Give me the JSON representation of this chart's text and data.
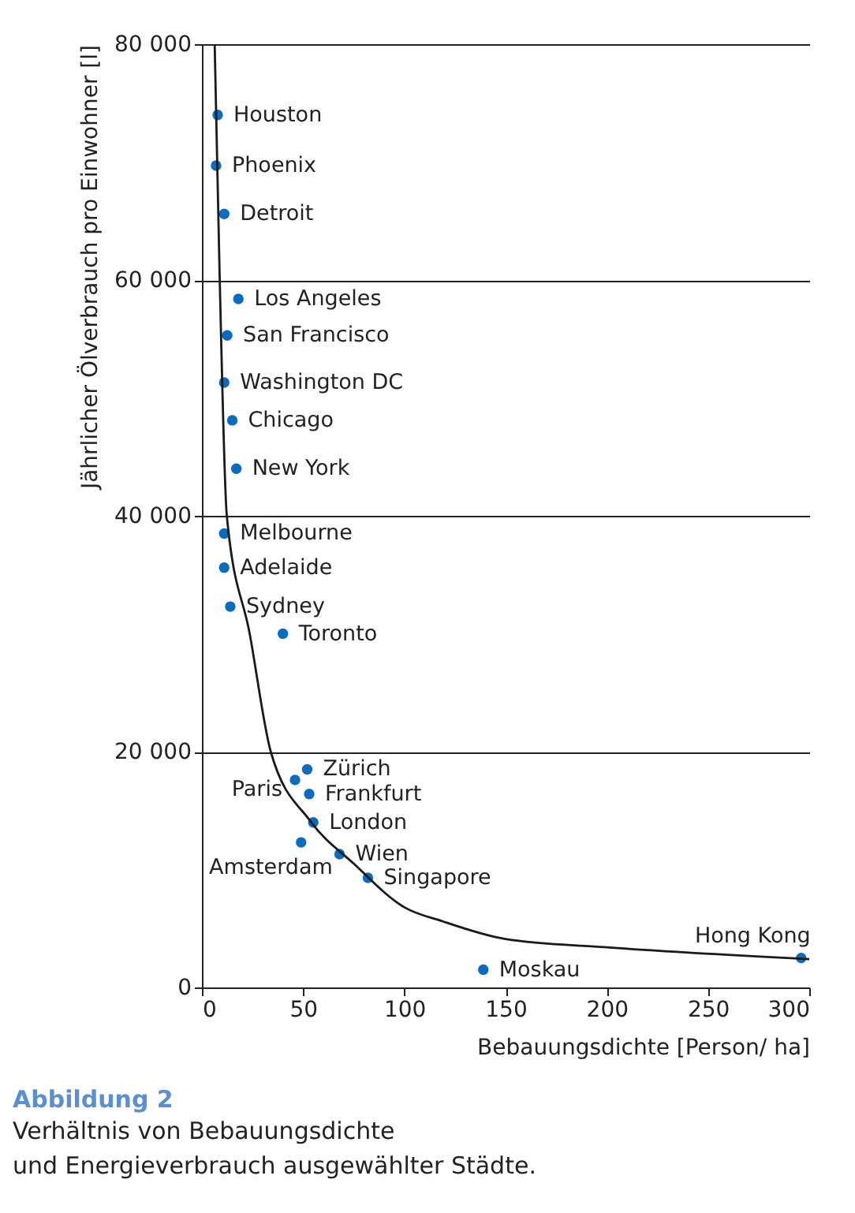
{
  "chart_data": {
    "type": "scatter",
    "xlabel": "Bebauungsdichte [Person/ ha]",
    "ylabel": "Jährlicher Ölverbrauch pro Einwohner [l]",
    "xlim": [
      0,
      300
    ],
    "ylim": [
      0,
      80000
    ],
    "xticks": [
      0,
      50,
      100,
      150,
      200,
      250,
      300
    ],
    "yticks": [
      0,
      {
        "value": 20000,
        "label": "20 000"
      },
      {
        "value": 40000,
        "label": "40 000"
      },
      {
        "value": 60000,
        "label": "60 000"
      },
      {
        "value": 80000,
        "label": "80 000"
      }
    ],
    "grid": "y",
    "series": [
      {
        "color": "#0a6cbf",
        "marker": "circle",
        "x": [
          7.8,
          7,
          11,
          18,
          12.5,
          11,
          15,
          17,
          11,
          11,
          14,
          40,
          52,
          46,
          53,
          55,
          49,
          68,
          82,
          139,
          296
        ],
        "values": [
          74000,
          69700,
          65600,
          58400,
          55300,
          51300,
          48100,
          44000,
          38500,
          35600,
          32300,
          30000,
          18500,
          17600,
          16400,
          14000,
          12300,
          11300,
          9300,
          1500,
          2500
        ]
      },
      {
        "type": "line",
        "color": "#1a1a1a",
        "line_style": "solid",
        "marker": "none",
        "x": [
          6.3,
          8.8,
          12.3,
          23.6,
          34,
          53.6,
          75,
          100,
          119,
          150,
          200,
          300
        ],
        "values": [
          80000,
          60000,
          40000,
          30000,
          20000,
          14100,
          10500,
          6800,
          5600,
          4100,
          3400,
          2400
        ]
      }
    ],
    "annotations": [
      {
        "text": "Houston",
        "x": 7.8,
        "y": 74000
      },
      {
        "text": "Phoenix",
        "x": 7,
        "y": 69700
      },
      {
        "text": "Detroit",
        "x": 11,
        "y": 65600
      },
      {
        "text": "Los Angeles",
        "x": 18,
        "y": 58400
      },
      {
        "text": "San Francisco",
        "x": 12.5,
        "y": 55300
      },
      {
        "text": "Washington DC",
        "x": 11,
        "y": 51300
      },
      {
        "text": "Chicago",
        "x": 15,
        "y": 48100
      },
      {
        "text": "New York",
        "x": 17,
        "y": 44000
      },
      {
        "text": "Melbourne",
        "x": 11,
        "y": 38500
      },
      {
        "text": "Adelaide",
        "x": 11,
        "y": 35600
      },
      {
        "text": "Sydney",
        "x": 14,
        "y": 32300
      },
      {
        "text": "Toronto",
        "x": 40,
        "y": 30000
      },
      {
        "text": "Zürich",
        "x": 52,
        "y": 18500
      },
      {
        "text": "Paris",
        "x": 46,
        "y": 17600
      },
      {
        "text": "Frankfurt",
        "x": 53,
        "y": 16400
      },
      {
        "text": "London",
        "x": 55,
        "y": 14000
      },
      {
        "text": "Amsterdam",
        "x": 49,
        "y": 12300
      },
      {
        "text": "Wien",
        "x": 68,
        "y": 11300
      },
      {
        "text": "Singapore",
        "x": 82,
        "y": 9300
      },
      {
        "text": "Moskau",
        "x": 139,
        "y": 1500
      },
      {
        "text": "Hong Kong",
        "x": 296,
        "y": 2500
      },
      "Abbildung 2",
      "Verhältnis von Bebauungsdichte und Energieverbrauch ausgewählter Städte."
    ]
  }
}
